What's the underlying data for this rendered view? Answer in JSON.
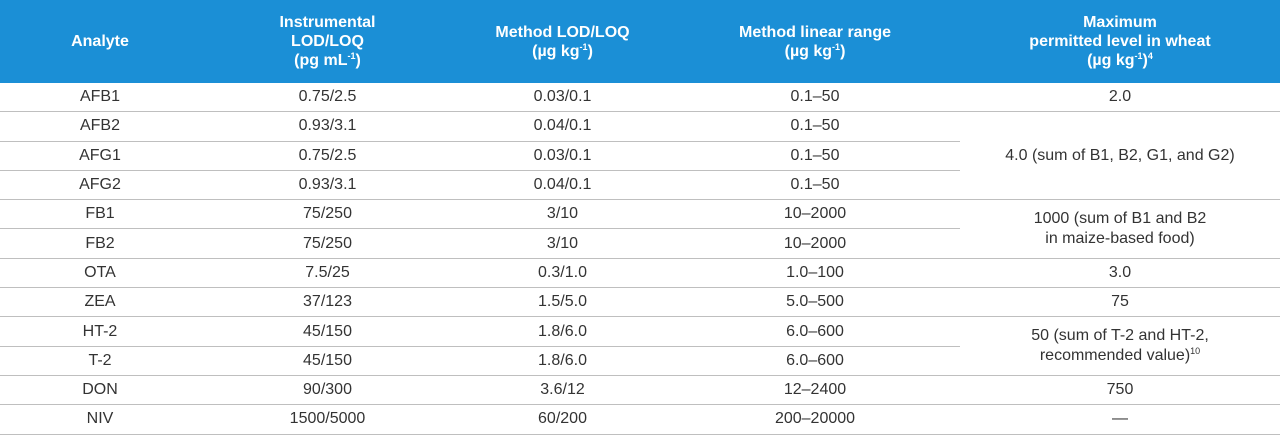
{
  "header": {
    "columns": [
      [
        [
          "Analyte"
        ]
      ],
      [
        [
          "Instrumental"
        ],
        [
          "LOD/LOQ"
        ],
        [
          "(pg mL",
          {
            "sup": "-1"
          },
          ")"
        ]
      ],
      [
        [
          "Method LOD/LOQ"
        ],
        [
          "(µg kg",
          {
            "sup": "-1"
          },
          ")"
        ]
      ],
      [
        [
          "Method linear range"
        ],
        [
          "(µg kg",
          {
            "sup": "-1"
          },
          ")"
        ]
      ],
      [
        [
          "Maximum"
        ],
        [
          "permitted level in wheat"
        ],
        [
          "(µg kg",
          {
            "sup": "-1"
          },
          ")",
          {
            "sup": "4"
          }
        ]
      ]
    ]
  },
  "table": {
    "rows": [
      [
        "AFB1",
        "0.75/2.5",
        "0.03/0.1",
        "0.1–50"
      ],
      [
        "AFB2",
        "0.93/3.1",
        "0.04/0.1",
        "0.1–50"
      ],
      [
        "AFG1",
        "0.75/2.5",
        "0.03/0.1",
        "0.1–50"
      ],
      [
        "AFG2",
        "0.93/3.1",
        "0.04/0.1",
        "0.1–50"
      ],
      [
        "FB1",
        "75/250",
        "3/10",
        "10–2000"
      ],
      [
        "FB2",
        "75/250",
        "3/10",
        "10–2000"
      ],
      [
        "OTA",
        "7.5/25",
        "0.3/1.0",
        "1.0–100"
      ],
      [
        "ZEA",
        "37/123",
        "1.5/5.0",
        "5.0–500"
      ],
      [
        "HT-2",
        "45/150",
        "1.8/6.0",
        "6.0–600"
      ],
      [
        "T-2",
        "45/150",
        "1.8/6.0",
        "6.0–600"
      ],
      [
        "DON",
        "90/300",
        "3.6/12",
        "12–2400"
      ],
      [
        "NIV",
        "1500/5000",
        "60/200",
        "200–20000"
      ]
    ],
    "limits": [
      {
        "span": 1,
        "lines": [
          [
            "2.0"
          ]
        ]
      },
      {
        "span": 3,
        "lines": [
          [
            "4.0 (sum of B1, B2, G1, and G2)"
          ]
        ]
      },
      {
        "span": 2,
        "lines": [
          [
            "1000 (sum of B1 and B2"
          ],
          [
            "in maize-based food)"
          ]
        ]
      },
      {
        "span": 1,
        "lines": [
          [
            "3.0"
          ]
        ]
      },
      {
        "span": 1,
        "lines": [
          [
            "75"
          ]
        ]
      },
      {
        "span": 2,
        "lines": [
          [
            "50 (sum of T-2 and HT-2,"
          ],
          [
            "recommended value)",
            {
              "sup": "10"
            }
          ]
        ]
      },
      {
        "span": 1,
        "lines": [
          [
            "750"
          ]
        ]
      },
      {
        "span": 1,
        "lines": [
          [
            "—"
          ]
        ]
      }
    ]
  }
}
